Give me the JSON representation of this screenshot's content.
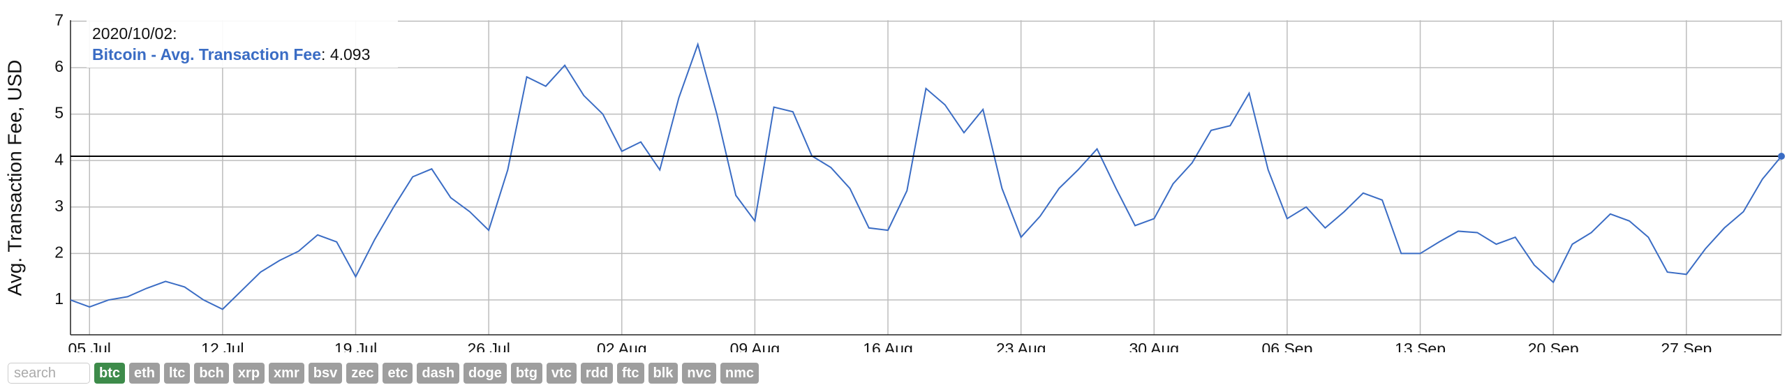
{
  "chart_data": {
    "type": "line",
    "y_label": "Avg. Transaction Fee, USD",
    "x": [
      "2020-07-04",
      "2020-07-05",
      "2020-07-06",
      "2020-07-07",
      "2020-07-08",
      "2020-07-09",
      "2020-07-10",
      "2020-07-11",
      "2020-07-12",
      "2020-07-13",
      "2020-07-14",
      "2020-07-15",
      "2020-07-16",
      "2020-07-17",
      "2020-07-18",
      "2020-07-19",
      "2020-07-20",
      "2020-07-21",
      "2020-07-22",
      "2020-07-23",
      "2020-07-24",
      "2020-07-25",
      "2020-07-26",
      "2020-07-27",
      "2020-07-28",
      "2020-07-29",
      "2020-07-30",
      "2020-07-31",
      "2020-08-01",
      "2020-08-02",
      "2020-08-03",
      "2020-08-04",
      "2020-08-05",
      "2020-08-06",
      "2020-08-07",
      "2020-08-08",
      "2020-08-09",
      "2020-08-10",
      "2020-08-11",
      "2020-08-12",
      "2020-08-13",
      "2020-08-14",
      "2020-08-15",
      "2020-08-16",
      "2020-08-17",
      "2020-08-18",
      "2020-08-19",
      "2020-08-20",
      "2020-08-21",
      "2020-08-22",
      "2020-08-23",
      "2020-08-24",
      "2020-08-25",
      "2020-08-26",
      "2020-08-27",
      "2020-08-28",
      "2020-08-29",
      "2020-08-30",
      "2020-08-31",
      "2020-09-01",
      "2020-09-02",
      "2020-09-03",
      "2020-09-04",
      "2020-09-05",
      "2020-09-06",
      "2020-09-07",
      "2020-09-08",
      "2020-09-09",
      "2020-09-10",
      "2020-09-11",
      "2020-09-12",
      "2020-09-13",
      "2020-09-14",
      "2020-09-15",
      "2020-09-16",
      "2020-09-17",
      "2020-09-18",
      "2020-09-19",
      "2020-09-20",
      "2020-09-21",
      "2020-09-22",
      "2020-09-23",
      "2020-09-24",
      "2020-09-25",
      "2020-09-26",
      "2020-09-27",
      "2020-09-28",
      "2020-09-29",
      "2020-09-30",
      "2020-10-01",
      "2020-10-02"
    ],
    "series": [
      {
        "name": "Bitcoin - Avg. Transaction Fee",
        "color": "#3a6cc4",
        "values": [
          1.0,
          0.85,
          1.0,
          1.07,
          1.25,
          1.4,
          1.28,
          1.0,
          0.8,
          1.2,
          1.6,
          1.85,
          2.05,
          2.4,
          2.25,
          1.5,
          2.3,
          3.0,
          3.65,
          3.82,
          3.2,
          2.9,
          2.5,
          3.8,
          5.8,
          5.6,
          6.05,
          5.4,
          5.0,
          4.2,
          4.4,
          3.8,
          5.35,
          6.5,
          5.0,
          3.25,
          2.7,
          5.15,
          5.05,
          4.1,
          3.85,
          3.4,
          2.55,
          2.5,
          3.35,
          5.55,
          5.2,
          4.6,
          5.1,
          3.4,
          2.35,
          2.8,
          3.4,
          3.8,
          4.25,
          3.4,
          2.6,
          2.75,
          3.5,
          3.95,
          4.65,
          4.75,
          5.45,
          3.8,
          2.75,
          3.0,
          2.55,
          2.9,
          3.3,
          3.15,
          2.0,
          2.0,
          2.25,
          2.48,
          2.45,
          2.2,
          2.35,
          1.75,
          1.38,
          2.2,
          2.45,
          2.85,
          2.7,
          2.35,
          1.6,
          1.55,
          2.1,
          2.55,
          2.9,
          3.6,
          4.093
        ]
      }
    ],
    "xlim": [
      "2020-07-04",
      "2020-10-02"
    ],
    "xticks": [
      {
        "value": "2020-07-05",
        "label": "05 Jul"
      },
      {
        "value": "2020-07-12",
        "label": "12 Jul"
      },
      {
        "value": "2020-07-19",
        "label": "19 Jul"
      },
      {
        "value": "2020-07-26",
        "label": "26 Jul"
      },
      {
        "value": "2020-08-02",
        "label": "02 Aug"
      },
      {
        "value": "2020-08-09",
        "label": "09 Aug"
      },
      {
        "value": "2020-08-16",
        "label": "16 Aug"
      },
      {
        "value": "2020-08-23",
        "label": "23 Aug"
      },
      {
        "value": "2020-08-30",
        "label": "30 Aug"
      },
      {
        "value": "2020-09-06",
        "label": "06 Sep"
      },
      {
        "value": "2020-09-13",
        "label": "13 Sep"
      },
      {
        "value": "2020-09-20",
        "label": "20 Sep"
      },
      {
        "value": "2020-09-27",
        "label": "27 Sep"
      }
    ],
    "ylim": [
      0.25,
      7.02
    ],
    "yticks": [
      1,
      2,
      3,
      4,
      5,
      6,
      7
    ],
    "grid": true,
    "tooltip": {
      "date": "2020/10/02:",
      "label": "Bitcoin - Avg. Transaction Fee",
      "separator": ":",
      "value": 4.093
    }
  },
  "controls": {
    "search_placeholder": "search",
    "coins": [
      {
        "label": "btc",
        "active": true
      },
      {
        "label": "eth",
        "active": false
      },
      {
        "label": "ltc",
        "active": false
      },
      {
        "label": "bch",
        "active": false
      },
      {
        "label": "xrp",
        "active": false
      },
      {
        "label": "xmr",
        "active": false
      },
      {
        "label": "bsv",
        "active": false
      },
      {
        "label": "zec",
        "active": false
      },
      {
        "label": "etc",
        "active": false
      },
      {
        "label": "dash",
        "active": false
      },
      {
        "label": "doge",
        "active": false
      },
      {
        "label": "btg",
        "active": false
      },
      {
        "label": "vtc",
        "active": false
      },
      {
        "label": "rdd",
        "active": false
      },
      {
        "label": "ftc",
        "active": false
      },
      {
        "label": "blk",
        "active": false
      },
      {
        "label": "nvc",
        "active": false
      },
      {
        "label": "nmc",
        "active": false
      }
    ]
  }
}
